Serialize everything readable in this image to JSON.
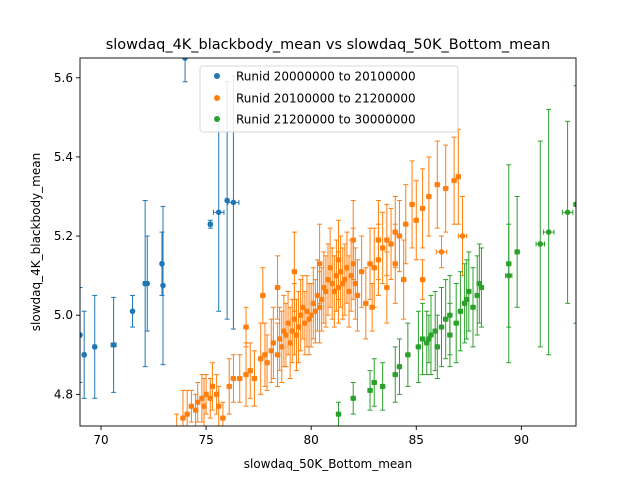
{
  "chart_data": {
    "type": "scatter",
    "title": "slowdaq_4K_blackbody_mean vs slowdaq_50K_Bottom_mean",
    "xlabel": "slowdaq_50K_Bottom_mean",
    "ylabel": "slowdaq_4K_blackbody_mean",
    "xlim": [
      69.0,
      92.6
    ],
    "ylim": [
      4.72,
      5.65
    ],
    "xticks": [
      70,
      75,
      80,
      85,
      90
    ],
    "yticks": [
      4.8,
      5.0,
      5.2,
      5.4,
      5.6
    ],
    "xtick_labels": [
      "70",
      "75",
      "80",
      "85",
      "90"
    ],
    "ytick_labels": [
      "4.8",
      "5.0",
      "5.2",
      "5.4",
      "5.6"
    ],
    "grid": false,
    "legend_position": "top-center",
    "error_bars": true,
    "series": [
      {
        "name": "Runid 20000000 to 20100000",
        "color": "#1f77b4",
        "points": [
          [
            69.0,
            4.95,
            0.12,
            0.06
          ],
          [
            69.2,
            4.9,
            0.11,
            0.06
          ],
          [
            69.7,
            4.92,
            0.13,
            0.07
          ],
          [
            70.6,
            4.925,
            0.12,
            0.12
          ],
          [
            71.5,
            5.01,
            0.04,
            0.05
          ],
          [
            72.1,
            5.08,
            0.21,
            0.08
          ],
          [
            72.2,
            5.08,
            0.12,
            0.06
          ],
          [
            72.9,
            5.13,
            0.08,
            0.07
          ],
          [
            72.95,
            5.075,
            0.2,
            0.04
          ],
          [
            74.0,
            5.65,
            0.06,
            0.05
          ],
          [
            75.2,
            5.23,
            0.01,
            0.08
          ],
          [
            75.6,
            5.26,
            0.25,
            0.25
          ],
          [
            76.0,
            5.29,
            0.3,
            0.05
          ],
          [
            76.3,
            5.285,
            0.32,
            0.26
          ]
        ]
      },
      {
        "name": "Runid 20100000 to 21200000",
        "color": "#ff7f0e",
        "points": [
          [
            73.6,
            4.71,
            0.04,
            0.15
          ],
          [
            73.9,
            4.74,
            0.07,
            0.1
          ],
          [
            74.1,
            4.75,
            0.06,
            0.1
          ],
          [
            74.3,
            4.77,
            0.04,
            0.1
          ],
          [
            74.5,
            4.76,
            0.04,
            0.1
          ],
          [
            74.6,
            4.78,
            0.05,
            0.1
          ],
          [
            74.8,
            4.79,
            0.06,
            0.1
          ],
          [
            74.9,
            4.77,
            0.07,
            0.1
          ],
          [
            75.0,
            4.8,
            0.05,
            0.1
          ],
          [
            75.2,
            4.79,
            0.05,
            0.1
          ],
          [
            75.3,
            4.82,
            0.06,
            0.1
          ],
          [
            75.5,
            4.8,
            0.05,
            0.1
          ],
          [
            75.6,
            4.77,
            0.05,
            0.1
          ],
          [
            75.8,
            4.74,
            0.04,
            0.1
          ],
          [
            76.1,
            4.82,
            0.07,
            0.1
          ],
          [
            76.3,
            4.84,
            0.06,
            0.1
          ],
          [
            76.6,
            4.84,
            0.06,
            0.1
          ],
          [
            76.9,
            4.85,
            0.08,
            0.1
          ],
          [
            77.1,
            4.86,
            0.07,
            0.1
          ],
          [
            77.3,
            4.84,
            0.07,
            0.1
          ],
          [
            77.6,
            4.89,
            0.09,
            0.1
          ],
          [
            77.8,
            4.9,
            0.08,
            0.1
          ],
          [
            77.9,
            4.88,
            0.07,
            0.1
          ],
          [
            78.1,
            4.91,
            0.08,
            0.1
          ],
          [
            78.2,
            4.93,
            0.09,
            0.1
          ],
          [
            78.4,
            4.9,
            0.08,
            0.1
          ],
          [
            78.5,
            4.94,
            0.08,
            0.1
          ],
          [
            78.6,
            4.92,
            0.09,
            0.1
          ],
          [
            78.7,
            4.96,
            0.09,
            0.1
          ],
          [
            78.8,
            4.95,
            0.08,
            0.1
          ],
          [
            78.9,
            4.98,
            0.08,
            0.1
          ],
          [
            79.0,
            4.93,
            0.09,
            0.1
          ],
          [
            79.1,
            4.96,
            0.08,
            0.1
          ],
          [
            79.2,
            4.99,
            0.09,
            0.1
          ],
          [
            79.3,
            4.95,
            0.09,
            0.1
          ],
          [
            79.4,
            4.97,
            0.09,
            0.1
          ],
          [
            79.5,
            5.0,
            0.09,
            0.1
          ],
          [
            79.6,
            5.02,
            0.08,
            0.1
          ],
          [
            79.7,
            4.98,
            0.08,
            0.1
          ],
          [
            79.8,
            5.01,
            0.09,
            0.1
          ],
          [
            79.9,
            4.99,
            0.09,
            0.1
          ],
          [
            80.0,
            5.0,
            0.08,
            0.1
          ],
          [
            80.1,
            5.03,
            0.09,
            0.1
          ],
          [
            80.2,
            5.01,
            0.08,
            0.1
          ],
          [
            80.3,
            5.05,
            0.09,
            0.1
          ],
          [
            80.4,
            5.02,
            0.09,
            0.1
          ],
          [
            80.5,
            5.04,
            0.08,
            0.1
          ],
          [
            80.6,
            5.07,
            0.09,
            0.1
          ],
          [
            80.7,
            5.06,
            0.09,
            0.1
          ],
          [
            80.8,
            5.09,
            0.09,
            0.1
          ],
          [
            80.9,
            5.12,
            0.1,
            0.1
          ],
          [
            81.0,
            5.08,
            0.09,
            0.1
          ],
          [
            81.1,
            5.06,
            0.09,
            0.1
          ],
          [
            81.2,
            5.1,
            0.09,
            0.1
          ],
          [
            81.3,
            5.07,
            0.09,
            0.1
          ],
          [
            81.4,
            5.11,
            0.09,
            0.1
          ],
          [
            81.5,
            5.08,
            0.09,
            0.1
          ],
          [
            81.6,
            5.09,
            0.09,
            0.1
          ],
          [
            81.7,
            5.12,
            0.09,
            0.1
          ],
          [
            81.8,
            5.06,
            0.09,
            0.1
          ],
          [
            81.9,
            5.1,
            0.09,
            0.1
          ],
          [
            82.0,
            5.13,
            0.09,
            0.1
          ],
          [
            82.1,
            5.08,
            0.09,
            0.1
          ],
          [
            82.2,
            5.05,
            0.09,
            0.1
          ],
          [
            82.4,
            5.11,
            0.09,
            0.1
          ],
          [
            82.6,
            5.03,
            0.09,
            0.1
          ],
          [
            82.8,
            5.13,
            0.09,
            0.1
          ],
          [
            83.0,
            5.12,
            0.1,
            0.1
          ],
          [
            83.2,
            5.14,
            0.09,
            0.1
          ],
          [
            83.4,
            5.17,
            0.09,
            0.1
          ],
          [
            83.6,
            5.19,
            0.09,
            0.1
          ],
          [
            83.8,
            5.18,
            0.09,
            0.1
          ],
          [
            84.0,
            5.21,
            0.09,
            0.1
          ],
          [
            84.2,
            5.2,
            0.09,
            0.1
          ],
          [
            84.5,
            5.23,
            0.1,
            0.1
          ],
          [
            84.8,
            5.28,
            0.11,
            0.1
          ],
          [
            85.0,
            5.24,
            0.1,
            0.1
          ],
          [
            85.3,
            5.27,
            0.1,
            0.1
          ],
          [
            85.6,
            5.3,
            0.1,
            0.1
          ],
          [
            86.0,
            5.33,
            0.11,
            0.1
          ],
          [
            86.4,
            5.32,
            0.11,
            0.1
          ],
          [
            86.8,
            5.34,
            0.11,
            0.1
          ],
          [
            87.0,
            5.35,
            0.12,
            0.1
          ],
          [
            79.2,
            5.11,
            0.1,
            0.1
          ],
          [
            80.4,
            5.13,
            0.1,
            0.1
          ],
          [
            81.3,
            5.14,
            0.1,
            0.1
          ],
          [
            82.9,
            5.02,
            0.06,
            0.1
          ],
          [
            83.6,
            5.07,
            0.09,
            0.1
          ],
          [
            84.4,
            5.09,
            0.1,
            0.1
          ],
          [
            85.3,
            5.09,
            0.05,
            0.1
          ],
          [
            86.2,
            5.16,
            0.04,
            0.25
          ],
          [
            87.2,
            5.2,
            0.1,
            0.2
          ],
          [
            76.9,
            4.97,
            0.05,
            0.1
          ],
          [
            77.7,
            5.05,
            0.07,
            0.1
          ],
          [
            78.4,
            5.07,
            0.08,
            0.1
          ],
          [
            82.0,
            5.19,
            0.1,
            0.1
          ],
          [
            83.2,
            5.19,
            0.1,
            0.1
          ],
          [
            84.0,
            5.13,
            0.1,
            0.1
          ]
        ]
      },
      {
        "name": "Runid 21200000 to 30000000",
        "color": "#2ca02c",
        "points": [
          [
            81.3,
            4.75,
            0.03,
            0.1
          ],
          [
            82.0,
            4.79,
            0.04,
            0.1
          ],
          [
            82.8,
            4.81,
            0.05,
            0.1
          ],
          [
            83.0,
            4.83,
            0.06,
            0.1
          ],
          [
            83.4,
            4.82,
            0.06,
            0.1
          ],
          [
            84.0,
            4.85,
            0.07,
            0.1
          ],
          [
            84.2,
            4.87,
            0.07,
            0.1
          ],
          [
            84.6,
            4.9,
            0.08,
            0.1
          ],
          [
            85.1,
            4.92,
            0.09,
            0.1
          ],
          [
            85.3,
            4.94,
            0.09,
            0.1
          ],
          [
            85.5,
            4.93,
            0.08,
            0.1
          ],
          [
            85.7,
            4.95,
            0.1,
            0.1
          ],
          [
            85.9,
            4.96,
            0.1,
            0.1
          ],
          [
            86.0,
            4.92,
            0.08,
            0.1
          ],
          [
            86.2,
            4.97,
            0.1,
            0.1
          ],
          [
            86.4,
            4.99,
            0.1,
            0.1
          ],
          [
            86.6,
            5.0,
            0.1,
            0.1
          ],
          [
            86.9,
            4.98,
            0.1,
            0.1
          ],
          [
            87.1,
            5.01,
            0.1,
            0.1
          ],
          [
            87.3,
            5.03,
            0.1,
            0.1
          ],
          [
            87.5,
            5.06,
            0.1,
            0.1
          ],
          [
            87.7,
            5.02,
            0.1,
            0.1
          ],
          [
            87.9,
            5.05,
            0.1,
            0.1
          ],
          [
            88.1,
            5.07,
            0.1,
            0.1
          ],
          [
            85.6,
            4.94,
            0.06,
            0.1
          ],
          [
            86.6,
            4.95,
            0.08,
            0.1
          ],
          [
            87.4,
            5.04,
            0.1,
            0.1
          ],
          [
            88.0,
            5.08,
            0.1,
            0.1
          ],
          [
            89.4,
            5.1,
            0.13,
            0.15
          ],
          [
            89.4,
            5.13,
            0.25,
            0.1
          ],
          [
            89.8,
            5.16,
            0.14,
            0.1
          ],
          [
            90.9,
            5.18,
            0.26,
            0.2
          ],
          [
            91.3,
            5.21,
            0.31,
            0.25
          ],
          [
            92.2,
            5.26,
            0.23,
            0.25
          ],
          [
            92.6,
            5.28,
            0.3,
            0.1
          ]
        ]
      }
    ]
  }
}
